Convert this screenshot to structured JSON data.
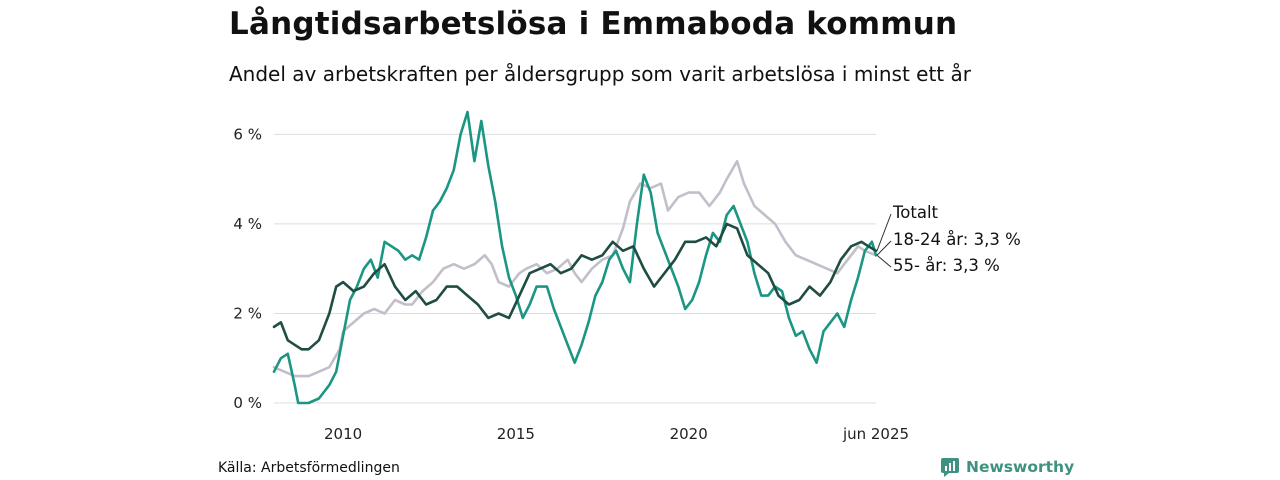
{
  "header": {
    "title": "Långtidsarbetslösa i Emmaboda kommun",
    "subtitle": "Andel av arbetskraften per åldersgrupp som varit arbetslösa i minst ett år"
  },
  "footer": {
    "source": "Källa: Arbetsförmedlingen",
    "brand": "Newsworthy"
  },
  "chart_data": {
    "type": "line",
    "x_unit": "year",
    "xlim": [
      2008.0,
      2025.42
    ],
    "ylim": [
      0,
      6.5
    ],
    "yticks": [
      {
        "value": 0,
        "label": "0 %"
      },
      {
        "value": 2,
        "label": "2 %"
      },
      {
        "value": 4,
        "label": "4 %"
      },
      {
        "value": 6,
        "label": "6 %"
      }
    ],
    "xticks": [
      {
        "value": 2010,
        "label": "2010"
      },
      {
        "value": 2015,
        "label": "2015"
      },
      {
        "value": 2020,
        "label": "2020"
      },
      {
        "value": 2025.42,
        "label": "jun 2025"
      }
    ],
    "grid": true,
    "legend": "end-of-line labels",
    "colors": {
      "totalt": "#1f4d43",
      "youth": "#1a9683",
      "older": "#c2bfcb",
      "grid": "#dddddd"
    },
    "series": [
      {
        "name": "55- år",
        "label": "55- år: 3,3 %",
        "color": "#c2bfcb",
        "points": [
          [
            2008.0,
            0.8
          ],
          [
            2008.3,
            0.7
          ],
          [
            2008.6,
            0.6
          ],
          [
            2009.0,
            0.6
          ],
          [
            2009.3,
            0.7
          ],
          [
            2009.6,
            0.8
          ],
          [
            2009.9,
            1.2
          ],
          [
            2010.0,
            1.6
          ],
          [
            2010.3,
            1.8
          ],
          [
            2010.6,
            2.0
          ],
          [
            2010.9,
            2.1
          ],
          [
            2011.2,
            2.0
          ],
          [
            2011.5,
            2.3
          ],
          [
            2011.8,
            2.2
          ],
          [
            2012.0,
            2.2
          ],
          [
            2012.3,
            2.5
          ],
          [
            2012.6,
            2.7
          ],
          [
            2012.9,
            3.0
          ],
          [
            2013.2,
            3.1
          ],
          [
            2013.5,
            3.0
          ],
          [
            2013.8,
            3.1
          ],
          [
            2014.1,
            3.3
          ],
          [
            2014.3,
            3.1
          ],
          [
            2014.5,
            2.7
          ],
          [
            2014.8,
            2.6
          ],
          [
            2015.1,
            2.9
          ],
          [
            2015.3,
            3.0
          ],
          [
            2015.6,
            3.1
          ],
          [
            2015.9,
            2.9
          ],
          [
            2016.2,
            3.0
          ],
          [
            2016.5,
            3.2
          ],
          [
            2016.7,
            2.9
          ],
          [
            2016.9,
            2.7
          ],
          [
            2017.2,
            3.0
          ],
          [
            2017.5,
            3.2
          ],
          [
            2017.8,
            3.3
          ],
          [
            2018.1,
            3.9
          ],
          [
            2018.3,
            4.5
          ],
          [
            2018.6,
            4.9
          ],
          [
            2018.9,
            4.8
          ],
          [
            2019.2,
            4.9
          ],
          [
            2019.4,
            4.3
          ],
          [
            2019.7,
            4.6
          ],
          [
            2020.0,
            4.7
          ],
          [
            2020.3,
            4.7
          ],
          [
            2020.6,
            4.4
          ],
          [
            2020.9,
            4.7
          ],
          [
            2021.1,
            5.0
          ],
          [
            2021.4,
            5.4
          ],
          [
            2021.6,
            4.9
          ],
          [
            2021.9,
            4.4
          ],
          [
            2022.2,
            4.2
          ],
          [
            2022.5,
            4.0
          ],
          [
            2022.8,
            3.6
          ],
          [
            2023.1,
            3.3
          ],
          [
            2023.4,
            3.2
          ],
          [
            2023.7,
            3.1
          ],
          [
            2024.0,
            3.0
          ],
          [
            2024.3,
            2.9
          ],
          [
            2024.6,
            3.2
          ],
          [
            2024.9,
            3.5
          ],
          [
            2025.1,
            3.4
          ],
          [
            2025.42,
            3.3
          ]
        ]
      },
      {
        "name": "18-24 år",
        "label": "18-24 år: 3,3 %",
        "color": "#1a9683",
        "points": [
          [
            2008.0,
            0.7
          ],
          [
            2008.2,
            1.0
          ],
          [
            2008.4,
            1.1
          ],
          [
            2008.6,
            0.4
          ],
          [
            2008.7,
            0.0
          ],
          [
            2009.0,
            0.0
          ],
          [
            2009.3,
            0.1
          ],
          [
            2009.6,
            0.4
          ],
          [
            2009.8,
            0.7
          ],
          [
            2010.0,
            1.5
          ],
          [
            2010.2,
            2.3
          ],
          [
            2010.4,
            2.6
          ],
          [
            2010.6,
            3.0
          ],
          [
            2010.8,
            3.2
          ],
          [
            2011.0,
            2.8
          ],
          [
            2011.2,
            3.6
          ],
          [
            2011.4,
            3.5
          ],
          [
            2011.6,
            3.4
          ],
          [
            2011.8,
            3.2
          ],
          [
            2012.0,
            3.3
          ],
          [
            2012.2,
            3.2
          ],
          [
            2012.4,
            3.7
          ],
          [
            2012.6,
            4.3
          ],
          [
            2012.8,
            4.5
          ],
          [
            2013.0,
            4.8
          ],
          [
            2013.2,
            5.2
          ],
          [
            2013.4,
            6.0
          ],
          [
            2013.6,
            6.5
          ],
          [
            2013.8,
            5.4
          ],
          [
            2014.0,
            6.3
          ],
          [
            2014.2,
            5.3
          ],
          [
            2014.4,
            4.5
          ],
          [
            2014.6,
            3.5
          ],
          [
            2014.8,
            2.8
          ],
          [
            2015.0,
            2.4
          ],
          [
            2015.2,
            1.9
          ],
          [
            2015.4,
            2.2
          ],
          [
            2015.6,
            2.6
          ],
          [
            2015.9,
            2.6
          ],
          [
            2016.1,
            2.1
          ],
          [
            2016.3,
            1.7
          ],
          [
            2016.5,
            1.3
          ],
          [
            2016.7,
            0.9
          ],
          [
            2016.9,
            1.3
          ],
          [
            2017.1,
            1.8
          ],
          [
            2017.3,
            2.4
          ],
          [
            2017.5,
            2.7
          ],
          [
            2017.7,
            3.2
          ],
          [
            2017.9,
            3.4
          ],
          [
            2018.1,
            3.0
          ],
          [
            2018.3,
            2.7
          ],
          [
            2018.5,
            4.0
          ],
          [
            2018.7,
            5.1
          ],
          [
            2018.9,
            4.7
          ],
          [
            2019.1,
            3.8
          ],
          [
            2019.3,
            3.4
          ],
          [
            2019.5,
            3.0
          ],
          [
            2019.7,
            2.6
          ],
          [
            2019.9,
            2.1
          ],
          [
            2020.1,
            2.3
          ],
          [
            2020.3,
            2.7
          ],
          [
            2020.5,
            3.3
          ],
          [
            2020.7,
            3.8
          ],
          [
            2020.9,
            3.6
          ],
          [
            2021.1,
            4.2
          ],
          [
            2021.3,
            4.4
          ],
          [
            2021.5,
            4.0
          ],
          [
            2021.7,
            3.6
          ],
          [
            2021.9,
            2.9
          ],
          [
            2022.1,
            2.4
          ],
          [
            2022.3,
            2.4
          ],
          [
            2022.5,
            2.6
          ],
          [
            2022.7,
            2.5
          ],
          [
            2022.9,
            1.9
          ],
          [
            2023.1,
            1.5
          ],
          [
            2023.3,
            1.6
          ],
          [
            2023.5,
            1.2
          ],
          [
            2023.7,
            0.9
          ],
          [
            2023.9,
            1.6
          ],
          [
            2024.1,
            1.8
          ],
          [
            2024.3,
            2.0
          ],
          [
            2024.5,
            1.7
          ],
          [
            2024.7,
            2.3
          ],
          [
            2024.9,
            2.8
          ],
          [
            2025.1,
            3.4
          ],
          [
            2025.3,
            3.6
          ],
          [
            2025.42,
            3.3
          ]
        ]
      },
      {
        "name": "Totalt",
        "label": "Totalt",
        "color": "#1f4d43",
        "points": [
          [
            2008.0,
            1.7
          ],
          [
            2008.2,
            1.8
          ],
          [
            2008.4,
            1.4
          ],
          [
            2008.6,
            1.3
          ],
          [
            2008.8,
            1.2
          ],
          [
            2009.0,
            1.2
          ],
          [
            2009.3,
            1.4
          ],
          [
            2009.6,
            2.0
          ],
          [
            2009.8,
            2.6
          ],
          [
            2010.0,
            2.7
          ],
          [
            2010.3,
            2.5
          ],
          [
            2010.6,
            2.6
          ],
          [
            2010.9,
            2.9
          ],
          [
            2011.2,
            3.1
          ],
          [
            2011.5,
            2.6
          ],
          [
            2011.8,
            2.3
          ],
          [
            2012.1,
            2.5
          ],
          [
            2012.4,
            2.2
          ],
          [
            2012.7,
            2.3
          ],
          [
            2013.0,
            2.6
          ],
          [
            2013.3,
            2.6
          ],
          [
            2013.6,
            2.4
          ],
          [
            2013.9,
            2.2
          ],
          [
            2014.2,
            1.9
          ],
          [
            2014.5,
            2.0
          ],
          [
            2014.8,
            1.9
          ],
          [
            2015.1,
            2.4
          ],
          [
            2015.4,
            2.9
          ],
          [
            2015.7,
            3.0
          ],
          [
            2016.0,
            3.1
          ],
          [
            2016.3,
            2.9
          ],
          [
            2016.6,
            3.0
          ],
          [
            2016.9,
            3.3
          ],
          [
            2017.2,
            3.2
          ],
          [
            2017.5,
            3.3
          ],
          [
            2017.8,
            3.6
          ],
          [
            2018.1,
            3.4
          ],
          [
            2018.4,
            3.5
          ],
          [
            2018.7,
            3.0
          ],
          [
            2019.0,
            2.6
          ],
          [
            2019.3,
            2.9
          ],
          [
            2019.6,
            3.2
          ],
          [
            2019.9,
            3.6
          ],
          [
            2020.2,
            3.6
          ],
          [
            2020.5,
            3.7
          ],
          [
            2020.8,
            3.5
          ],
          [
            2021.1,
            4.0
          ],
          [
            2021.4,
            3.9
          ],
          [
            2021.7,
            3.3
          ],
          [
            2022.0,
            3.1
          ],
          [
            2022.3,
            2.9
          ],
          [
            2022.6,
            2.4
          ],
          [
            2022.9,
            2.2
          ],
          [
            2023.2,
            2.3
          ],
          [
            2023.5,
            2.6
          ],
          [
            2023.8,
            2.4
          ],
          [
            2024.1,
            2.7
          ],
          [
            2024.4,
            3.2
          ],
          [
            2024.7,
            3.5
          ],
          [
            2025.0,
            3.6
          ],
          [
            2025.2,
            3.5
          ],
          [
            2025.42,
            3.4
          ]
        ]
      }
    ]
  }
}
